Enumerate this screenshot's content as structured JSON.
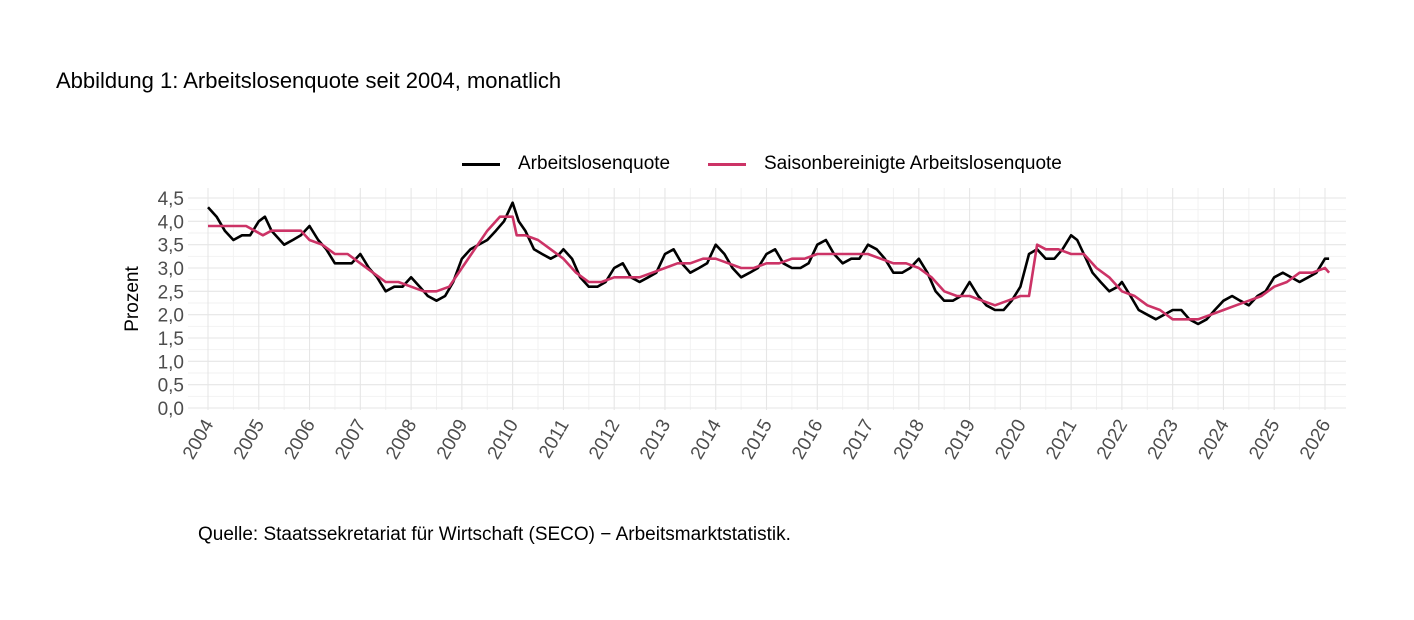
{
  "title": "Abbildung 1: Arbeitslosenquote seit 2004, monatlich",
  "source": "Quelle: Staatssekretariat für Wirtschaft (SECO) − Arbeitsmarktstatistik.",
  "legend": [
    {
      "label": "Arbeitslosenquote",
      "color": "#000000"
    },
    {
      "label": "Saisonbereinigte Arbeitslosenquote",
      "color": "#cc3366"
    }
  ],
  "chart_data": {
    "type": "line",
    "ylabel": "Prozent",
    "xlabel": "",
    "ylim": [
      0,
      4.5
    ],
    "yticks": [
      "0,0",
      "0,5",
      "1,0",
      "1,5",
      "2,0",
      "2,5",
      "3,0",
      "3,5",
      "4,0",
      "4,5"
    ],
    "xticks": [
      "2004",
      "2005",
      "2006",
      "2007",
      "2008",
      "2009",
      "2010",
      "2011",
      "2012",
      "2013",
      "2014",
      "2015",
      "2016",
      "2017",
      "2018",
      "2019",
      "2020",
      "2021",
      "2022",
      "2023",
      "2024",
      "2025",
      "2026"
    ],
    "grid": true,
    "legend_position": "top",
    "x_unit": "year (monthly)",
    "series": [
      {
        "name": "Arbeitslosenquote",
        "color": "#000000",
        "points": [
          [
            2004.0,
            4.3
          ],
          [
            2004.17,
            4.1
          ],
          [
            2004.33,
            3.8
          ],
          [
            2004.5,
            3.6
          ],
          [
            2004.67,
            3.7
          ],
          [
            2004.83,
            3.7
          ],
          [
            2005.0,
            4.0
          ],
          [
            2005.12,
            4.1
          ],
          [
            2005.25,
            3.8
          ],
          [
            2005.5,
            3.5
          ],
          [
            2005.67,
            3.6
          ],
          [
            2005.83,
            3.7
          ],
          [
            2006.0,
            3.9
          ],
          [
            2006.17,
            3.6
          ],
          [
            2006.33,
            3.4
          ],
          [
            2006.5,
            3.1
          ],
          [
            2006.67,
            3.1
          ],
          [
            2006.83,
            3.1
          ],
          [
            2007.0,
            3.3
          ],
          [
            2007.17,
            3.0
          ],
          [
            2007.33,
            2.8
          ],
          [
            2007.5,
            2.5
          ],
          [
            2007.67,
            2.6
          ],
          [
            2007.83,
            2.6
          ],
          [
            2008.0,
            2.8
          ],
          [
            2008.17,
            2.6
          ],
          [
            2008.33,
            2.4
          ],
          [
            2008.5,
            2.3
          ],
          [
            2008.67,
            2.4
          ],
          [
            2008.83,
            2.7
          ],
          [
            2009.0,
            3.2
          ],
          [
            2009.17,
            3.4
          ],
          [
            2009.33,
            3.5
          ],
          [
            2009.5,
            3.6
          ],
          [
            2009.67,
            3.8
          ],
          [
            2009.83,
            4.0
          ],
          [
            2010.0,
            4.4
          ],
          [
            2010.12,
            4.0
          ],
          [
            2010.25,
            3.8
          ],
          [
            2010.42,
            3.4
          ],
          [
            2010.58,
            3.3
          ],
          [
            2010.75,
            3.2
          ],
          [
            2010.92,
            3.3
          ],
          [
            2011.0,
            3.4
          ],
          [
            2011.17,
            3.2
          ],
          [
            2011.33,
            2.8
          ],
          [
            2011.5,
            2.6
          ],
          [
            2011.67,
            2.6
          ],
          [
            2011.83,
            2.7
          ],
          [
            2012.0,
            3.0
          ],
          [
            2012.17,
            3.1
          ],
          [
            2012.33,
            2.8
          ],
          [
            2012.5,
            2.7
          ],
          [
            2012.67,
            2.8
          ],
          [
            2012.83,
            2.9
          ],
          [
            2013.0,
            3.3
          ],
          [
            2013.17,
            3.4
          ],
          [
            2013.33,
            3.1
          ],
          [
            2013.5,
            2.9
          ],
          [
            2013.67,
            3.0
          ],
          [
            2013.83,
            3.1
          ],
          [
            2014.0,
            3.5
          ],
          [
            2014.17,
            3.3
          ],
          [
            2014.33,
            3.0
          ],
          [
            2014.5,
            2.8
          ],
          [
            2014.67,
            2.9
          ],
          [
            2014.83,
            3.0
          ],
          [
            2015.0,
            3.3
          ],
          [
            2015.17,
            3.4
          ],
          [
            2015.33,
            3.1
          ],
          [
            2015.5,
            3.0
          ],
          [
            2015.67,
            3.0
          ],
          [
            2015.83,
            3.1
          ],
          [
            2016.0,
            3.5
          ],
          [
            2016.17,
            3.6
          ],
          [
            2016.33,
            3.3
          ],
          [
            2016.5,
            3.1
          ],
          [
            2016.67,
            3.2
          ],
          [
            2016.83,
            3.2
          ],
          [
            2017.0,
            3.5
          ],
          [
            2017.17,
            3.4
          ],
          [
            2017.33,
            3.2
          ],
          [
            2017.5,
            2.9
          ],
          [
            2017.67,
            2.9
          ],
          [
            2017.83,
            3.0
          ],
          [
            2018.0,
            3.2
          ],
          [
            2018.17,
            2.9
          ],
          [
            2018.33,
            2.5
          ],
          [
            2018.5,
            2.3
          ],
          [
            2018.67,
            2.3
          ],
          [
            2018.83,
            2.4
          ],
          [
            2019.0,
            2.7
          ],
          [
            2019.17,
            2.4
          ],
          [
            2019.33,
            2.2
          ],
          [
            2019.5,
            2.1
          ],
          [
            2019.67,
            2.1
          ],
          [
            2019.83,
            2.3
          ],
          [
            2020.0,
            2.6
          ],
          [
            2020.17,
            3.3
          ],
          [
            2020.33,
            3.4
          ],
          [
            2020.5,
            3.2
          ],
          [
            2020.67,
            3.2
          ],
          [
            2020.83,
            3.4
          ],
          [
            2021.0,
            3.7
          ],
          [
            2021.12,
            3.6
          ],
          [
            2021.25,
            3.3
          ],
          [
            2021.42,
            2.9
          ],
          [
            2021.58,
            2.7
          ],
          [
            2021.75,
            2.5
          ],
          [
            2021.92,
            2.6
          ],
          [
            2022.0,
            2.7
          ],
          [
            2022.17,
            2.4
          ],
          [
            2022.33,
            2.1
          ],
          [
            2022.5,
            2.0
          ],
          [
            2022.67,
            1.9
          ],
          [
            2022.83,
            2.0
          ],
          [
            2023.0,
            2.1
          ],
          [
            2023.17,
            2.1
          ],
          [
            2023.33,
            1.9
          ],
          [
            2023.5,
            1.8
          ],
          [
            2023.67,
            1.9
          ],
          [
            2023.83,
            2.1
          ],
          [
            2024.0,
            2.3
          ],
          [
            2024.17,
            2.4
          ],
          [
            2024.33,
            2.3
          ],
          [
            2024.5,
            2.2
          ],
          [
            2024.67,
            2.4
          ],
          [
            2024.83,
            2.5
          ],
          [
            2025.0,
            2.8
          ],
          [
            2025.17,
            2.9
          ],
          [
            2025.33,
            2.8
          ],
          [
            2025.5,
            2.7
          ],
          [
            2025.67,
            2.8
          ],
          [
            2025.83,
            2.9
          ],
          [
            2026.0,
            3.2
          ],
          [
            2026.08,
            3.2
          ]
        ]
      },
      {
        "name": "Saisonbereinigte Arbeitslosenquote",
        "color": "#cc3366",
        "points": [
          [
            2004.0,
            3.9
          ],
          [
            2004.5,
            3.9
          ],
          [
            2004.75,
            3.9
          ],
          [
            2004.92,
            3.8
          ],
          [
            2005.08,
            3.7
          ],
          [
            2005.25,
            3.8
          ],
          [
            2005.5,
            3.8
          ],
          [
            2005.83,
            3.8
          ],
          [
            2006.0,
            3.6
          ],
          [
            2006.25,
            3.5
          ],
          [
            2006.5,
            3.3
          ],
          [
            2006.75,
            3.3
          ],
          [
            2007.0,
            3.1
          ],
          [
            2007.25,
            2.9
          ],
          [
            2007.5,
            2.7
          ],
          [
            2007.75,
            2.7
          ],
          [
            2008.0,
            2.6
          ],
          [
            2008.25,
            2.5
          ],
          [
            2008.5,
            2.5
          ],
          [
            2008.75,
            2.6
          ],
          [
            2009.0,
            3.0
          ],
          [
            2009.25,
            3.4
          ],
          [
            2009.5,
            3.8
          ],
          [
            2009.75,
            4.1
          ],
          [
            2010.0,
            4.1
          ],
          [
            2010.08,
            3.7
          ],
          [
            2010.25,
            3.7
          ],
          [
            2010.5,
            3.6
          ],
          [
            2010.75,
            3.4
          ],
          [
            2011.0,
            3.2
          ],
          [
            2011.25,
            2.9
          ],
          [
            2011.5,
            2.7
          ],
          [
            2011.75,
            2.7
          ],
          [
            2012.0,
            2.8
          ],
          [
            2012.25,
            2.8
          ],
          [
            2012.5,
            2.8
          ],
          [
            2012.75,
            2.9
          ],
          [
            2013.0,
            3.0
          ],
          [
            2013.25,
            3.1
          ],
          [
            2013.5,
            3.1
          ],
          [
            2013.75,
            3.2
          ],
          [
            2014.0,
            3.2
          ],
          [
            2014.25,
            3.1
          ],
          [
            2014.5,
            3.0
          ],
          [
            2014.75,
            3.0
          ],
          [
            2015.0,
            3.1
          ],
          [
            2015.25,
            3.1
          ],
          [
            2015.5,
            3.2
          ],
          [
            2015.75,
            3.2
          ],
          [
            2016.0,
            3.3
          ],
          [
            2016.25,
            3.3
          ],
          [
            2016.5,
            3.3
          ],
          [
            2016.75,
            3.3
          ],
          [
            2017.0,
            3.3
          ],
          [
            2017.25,
            3.2
          ],
          [
            2017.5,
            3.1
          ],
          [
            2017.75,
            3.1
          ],
          [
            2018.0,
            3.0
          ],
          [
            2018.25,
            2.8
          ],
          [
            2018.5,
            2.5
          ],
          [
            2018.75,
            2.4
          ],
          [
            2019.0,
            2.4
          ],
          [
            2019.25,
            2.3
          ],
          [
            2019.5,
            2.2
          ],
          [
            2019.75,
            2.3
          ],
          [
            2020.0,
            2.4
          ],
          [
            2020.17,
            2.4
          ],
          [
            2020.33,
            3.5
          ],
          [
            2020.5,
            3.4
          ],
          [
            2020.75,
            3.4
          ],
          [
            2021.0,
            3.3
          ],
          [
            2021.25,
            3.3
          ],
          [
            2021.5,
            3.0
          ],
          [
            2021.75,
            2.8
          ],
          [
            2022.0,
            2.5
          ],
          [
            2022.25,
            2.4
          ],
          [
            2022.5,
            2.2
          ],
          [
            2022.75,
            2.1
          ],
          [
            2023.0,
            1.9
          ],
          [
            2023.25,
            1.9
          ],
          [
            2023.5,
            1.9
          ],
          [
            2023.75,
            2.0
          ],
          [
            2024.0,
            2.1
          ],
          [
            2024.25,
            2.2
          ],
          [
            2024.5,
            2.3
          ],
          [
            2024.75,
            2.4
          ],
          [
            2025.0,
            2.6
          ],
          [
            2025.25,
            2.7
          ],
          [
            2025.5,
            2.9
          ],
          [
            2025.75,
            2.9
          ],
          [
            2026.0,
            3.0
          ],
          [
            2026.08,
            2.9
          ]
        ]
      }
    ]
  }
}
